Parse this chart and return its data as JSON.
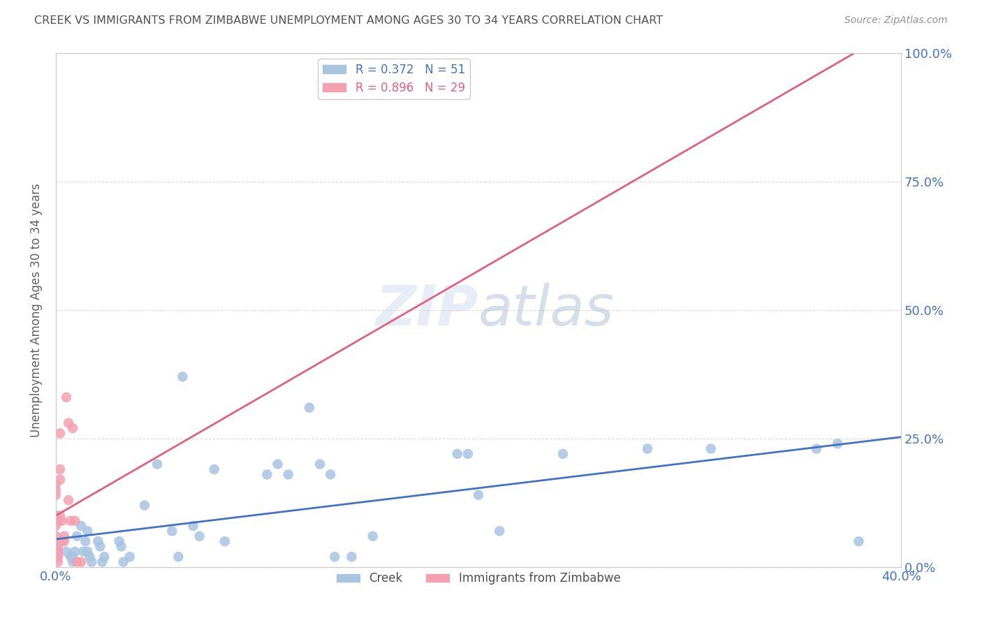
{
  "title": "CREEK VS IMMIGRANTS FROM ZIMBABWE UNEMPLOYMENT AMONG AGES 30 TO 34 YEARS CORRELATION CHART",
  "source": "Source: ZipAtlas.com",
  "ylabel": "Unemployment Among Ages 30 to 34 years",
  "xmin": 0.0,
  "xmax": 0.4,
  "ymin": 0.0,
  "ymax": 1.0,
  "creek_color": "#a8c4e0",
  "zimbabwe_color": "#f4a0b0",
  "creek_line_color": "#4472c4",
  "zimbabwe_line_color": "#e06080",
  "creek_R": 0.372,
  "creek_N": 51,
  "zimbabwe_R": 0.896,
  "zimbabwe_N": 29,
  "legend_creek": "Creek",
  "legend_zimbabwe": "Immigrants from Zimbabwe",
  "watermark": "ZIPatlas",
  "creek_x": [
    0.0,
    0.003,
    0.005,
    0.007,
    0.008,
    0.008,
    0.009,
    0.01,
    0.012,
    0.013,
    0.014,
    0.015,
    0.015,
    0.016,
    0.017,
    0.02,
    0.021,
    0.022,
    0.023,
    0.03,
    0.031,
    0.032,
    0.035,
    0.042,
    0.048,
    0.055,
    0.058,
    0.06,
    0.065,
    0.068,
    0.075,
    0.08,
    0.1,
    0.105,
    0.11,
    0.12,
    0.125,
    0.13,
    0.132,
    0.14,
    0.15,
    0.19,
    0.195,
    0.2,
    0.21,
    0.24,
    0.28,
    0.31,
    0.36,
    0.37,
    0.38
  ],
  "creek_y": [
    0.02,
    0.05,
    0.03,
    0.02,
    0.01,
    0.02,
    0.03,
    0.06,
    0.08,
    0.03,
    0.05,
    0.07,
    0.03,
    0.02,
    0.01,
    0.05,
    0.04,
    0.01,
    0.02,
    0.05,
    0.04,
    0.01,
    0.02,
    0.12,
    0.2,
    0.07,
    0.02,
    0.37,
    0.08,
    0.06,
    0.19,
    0.05,
    0.18,
    0.2,
    0.18,
    0.31,
    0.2,
    0.18,
    0.02,
    0.02,
    0.06,
    0.22,
    0.22,
    0.14,
    0.07,
    0.22,
    0.23,
    0.23,
    0.23,
    0.24,
    0.05
  ],
  "zimbabwe_x": [
    0.0,
    0.0,
    0.0,
    0.0,
    0.0,
    0.0,
    0.0,
    0.001,
    0.001,
    0.001,
    0.001,
    0.001,
    0.001,
    0.001,
    0.002,
    0.002,
    0.002,
    0.002,
    0.003,
    0.004,
    0.004,
    0.005,
    0.006,
    0.006,
    0.007,
    0.008,
    0.009,
    0.01,
    0.012
  ],
  "zimbabwe_y": [
    0.05,
    0.06,
    0.08,
    0.1,
    0.14,
    0.15,
    0.16,
    0.03,
    0.04,
    0.03,
    0.02,
    0.01,
    0.09,
    0.02,
    0.19,
    0.26,
    0.17,
    0.1,
    0.09,
    0.05,
    0.06,
    0.33,
    0.28,
    0.13,
    0.09,
    0.27,
    0.09,
    0.01,
    0.01
  ],
  "ytick_labels_right": [
    "0.0%",
    "25.0%",
    "50.0%",
    "75.0%",
    "100.0%"
  ],
  "ytick_values_right": [
    0.0,
    0.25,
    0.5,
    0.75,
    1.0
  ],
  "xtick_labels": [
    "0.0%",
    "",
    "",
    "",
    "40.0%"
  ],
  "xtick_values": [
    0.0,
    0.1,
    0.2,
    0.3,
    0.4
  ],
  "background_color": "#ffffff",
  "grid_color": "#d8d8d8",
  "axis_color": "#cccccc",
  "title_color": "#505050",
  "source_color": "#909090",
  "tick_color": "#4472c4"
}
